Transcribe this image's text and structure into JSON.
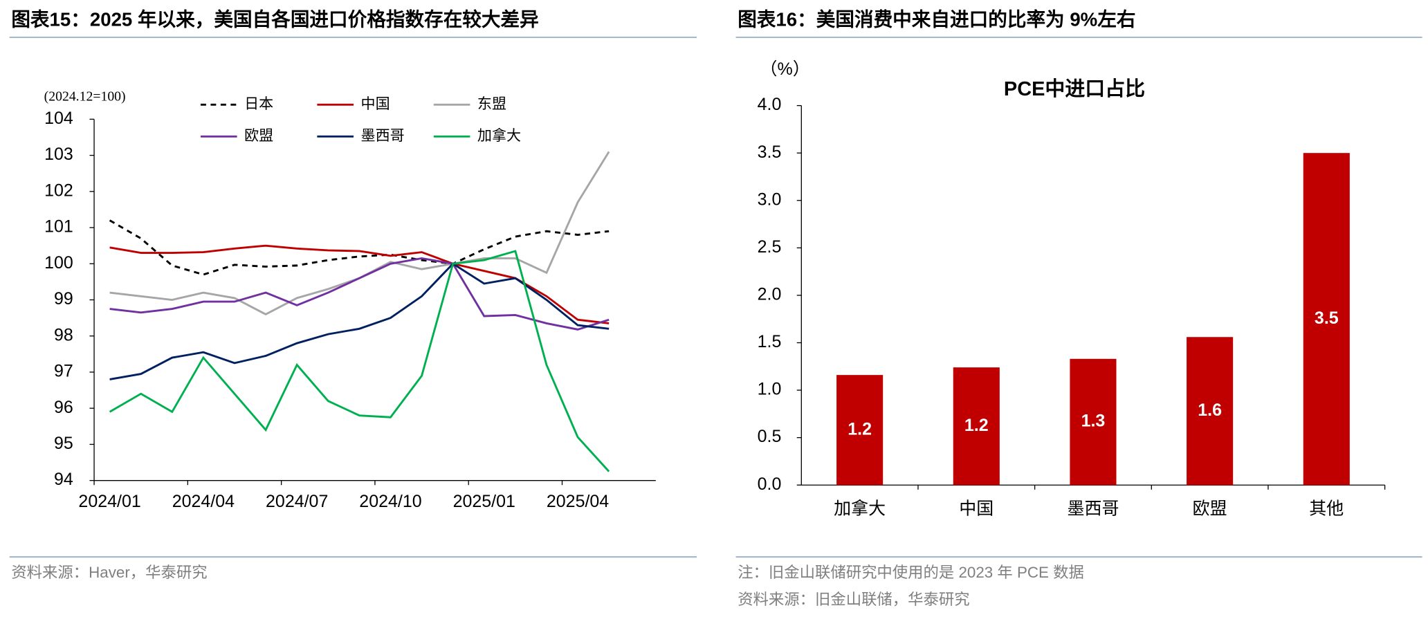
{
  "headers": [
    "图表15：2025 年以来，美国自各国进口价格指数存在较大差异",
    "图表16：美国消费中来自进口的比率为 9%左右"
  ],
  "notes": [
    [
      "资料来源：Haver，华泰研究"
    ],
    [
      "注：旧金山联储研究中使用的是 2023 年 PCE 数据",
      "资料来源：旧金山联储，华泰研究"
    ]
  ],
  "chart_data": [
    {
      "type": "line",
      "subtitle": "(2024.12=100)",
      "categories": [
        "2024/01",
        null,
        null,
        "2024/04",
        null,
        null,
        "2024/07",
        null,
        null,
        "2024/10",
        null,
        null,
        "2025/01",
        null,
        null,
        "2025/04",
        null,
        null
      ],
      "series": [
        {
          "name": "日本",
          "color": "#000000",
          "style": "dashed",
          "values": [
            101.2,
            100.7,
            99.95,
            99.7,
            99.97,
            99.92,
            99.95,
            100.1,
            100.2,
            100.25,
            100.1,
            100,
            100.4,
            100.75,
            100.9,
            100.8,
            100.9,
            null
          ]
        },
        {
          "name": "中国",
          "color": "#c00000",
          "style": "solid",
          "values": [
            100.45,
            100.3,
            100.3,
            100.32,
            100.42,
            100.5,
            100.42,
            100.37,
            100.35,
            100.22,
            100.32,
            100,
            99.8,
            99.6,
            99.1,
            98.45,
            98.35,
            null
          ]
        },
        {
          "name": "东盟",
          "color": "#a6a6a6",
          "style": "solid",
          "values": [
            99.2,
            99.1,
            99.0,
            99.2,
            99.05,
            98.6,
            99.05,
            99.3,
            99.6,
            100.05,
            99.85,
            100,
            100.15,
            100.15,
            99.75,
            101.7,
            103.1,
            null
          ]
        },
        {
          "name": "欧盟",
          "color": "#7030a0",
          "style": "solid",
          "values": [
            98.75,
            98.65,
            98.75,
            98.95,
            98.95,
            99.2,
            98.85,
            99.2,
            99.6,
            100.0,
            100.15,
            100,
            98.55,
            98.58,
            98.35,
            98.18,
            98.45,
            null
          ]
        },
        {
          "name": "墨西哥",
          "color": "#002060",
          "style": "solid",
          "values": [
            96.8,
            96.95,
            97.4,
            97.55,
            97.25,
            97.45,
            97.8,
            98.05,
            98.2,
            98.5,
            99.1,
            100,
            99.45,
            99.6,
            99.0,
            98.3,
            98.2,
            null
          ]
        },
        {
          "name": "加拿大",
          "color": "#00b050",
          "style": "solid",
          "values": [
            95.9,
            96.4,
            95.9,
            97.4,
            96.4,
            95.4,
            97.2,
            96.2,
            95.8,
            95.75,
            96.9,
            100,
            100.1,
            100.35,
            97.2,
            95.2,
            94.25,
            null
          ]
        }
      ],
      "ylim": [
        94,
        104
      ],
      "yticks": [
        94,
        95,
        96,
        97,
        98,
        99,
        100,
        101,
        102,
        103,
        104
      ]
    },
    {
      "type": "bar",
      "title": "PCE中进口占比",
      "y_label": "（%）",
      "categories": [
        "加拿大",
        "中国",
        "墨西哥",
        "欧盟",
        "其他"
      ],
      "values": [
        1.16,
        1.24,
        1.33,
        1.56,
        3.5
      ],
      "value_labels": [
        "1.2",
        "1.2",
        "1.3",
        "1.6",
        "3.5"
      ],
      "color": "#c00000",
      "ylim": [
        0,
        4
      ],
      "yticks": [
        {
          "value": 0,
          "label": "0.0"
        },
        0.5,
        {
          "value": 1,
          "label": "1.0"
        },
        1.5,
        {
          "value": 2,
          "label": "2.0"
        },
        2.5,
        {
          "value": 3,
          "label": "3.0"
        },
        3.5,
        {
          "value": 4,
          "label": "4.0"
        }
      ]
    }
  ]
}
